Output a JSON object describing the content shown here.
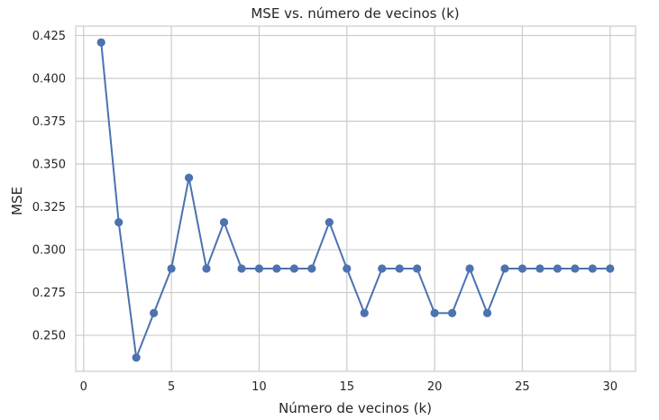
{
  "chart_data": {
    "type": "line",
    "title": "MSE vs. número de vecinos (k)",
    "xlabel": "Número de vecinos (k)",
    "ylabel": "MSE",
    "xlim": [
      -0.45,
      31.45
    ],
    "ylim": [
      0.229,
      0.4305
    ],
    "xticks": [
      0,
      5,
      10,
      15,
      20,
      25,
      30
    ],
    "yticks": [
      0.25,
      0.275,
      0.3,
      0.325,
      0.35,
      0.375,
      0.4,
      0.425
    ],
    "ytick_labels": [
      "0.250",
      "0.275",
      "0.300",
      "0.325",
      "0.350",
      "0.375",
      "0.400",
      "0.425"
    ],
    "grid": true,
    "marker": "circle",
    "line_color": "#4c72b0",
    "grid_color": "#cccccc",
    "spine_color": "#cccccc",
    "series": [
      {
        "x": [
          1,
          2,
          3,
          4,
          5,
          6,
          7,
          8,
          9,
          10,
          11,
          12,
          13,
          14,
          15,
          16,
          17,
          18,
          19,
          20,
          21,
          22,
          23,
          24,
          25,
          26,
          27,
          28,
          29,
          30
        ],
        "values": [
          0.421,
          0.316,
          0.237,
          0.263,
          0.289,
          0.342,
          0.289,
          0.316,
          0.289,
          0.289,
          0.289,
          0.289,
          0.289,
          0.316,
          0.289,
          0.263,
          0.289,
          0.289,
          0.289,
          0.263,
          0.263,
          0.289,
          0.263,
          0.289,
          0.289,
          0.289,
          0.289,
          0.289,
          0.289,
          0.289
        ]
      }
    ]
  }
}
